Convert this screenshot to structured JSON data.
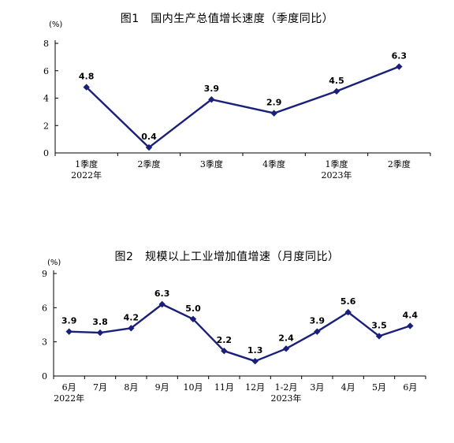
{
  "chart_data": [
    {
      "type": "line",
      "title": "图1　国内生产总值增长速度（季度同比）",
      "unit_label": "(%)",
      "categories": [
        "1季度",
        "2季度",
        "3季度",
        "4季度",
        "1季度",
        "2季度"
      ],
      "category_years": [
        "2022年",
        "",
        "",
        "",
        "2023年",
        ""
      ],
      "values": [
        4.8,
        0.4,
        3.9,
        2.9,
        4.5,
        6.3
      ],
      "data_labels": [
        "4.8",
        "0.4",
        "3.9",
        "2.9",
        "4.5",
        "6.3"
      ],
      "ylim": [
        0,
        8
      ],
      "yticks": [
        0,
        2,
        4,
        6,
        8
      ],
      "ytick_labels": [
        "0",
        "2",
        "4",
        "6",
        "8"
      ],
      "line_color": "#1a1f7a",
      "marker": "diamond"
    },
    {
      "type": "line",
      "title": "图2　规模以上工业增加值增速（月度同比）",
      "unit_label": "(%)",
      "categories": [
        "6月",
        "7月",
        "8月",
        "9月",
        "10月",
        "11月",
        "12月",
        "1-2月",
        "3月",
        "4月",
        "5月",
        "6月"
      ],
      "category_years": [
        "2022年",
        "",
        "",
        "",
        "",
        "",
        "",
        "2023年",
        "",
        "",
        "",
        ""
      ],
      "values": [
        3.9,
        3.8,
        4.2,
        6.3,
        5.0,
        2.2,
        1.3,
        2.4,
        3.9,
        5.6,
        3.5,
        4.4
      ],
      "data_labels": [
        "3.9",
        "3.8",
        "4.2",
        "6.3",
        "5.0",
        "2.2",
        "1.3",
        "2.4",
        "3.9",
        "5.6",
        "3.5",
        "4.4"
      ],
      "ylim": [
        0,
        9
      ],
      "yticks": [
        0,
        3,
        6,
        9
      ],
      "ytick_labels": [
        "0",
        "3",
        "6",
        "9"
      ],
      "line_color": "#1a1f7a",
      "marker": "diamond"
    }
  ]
}
